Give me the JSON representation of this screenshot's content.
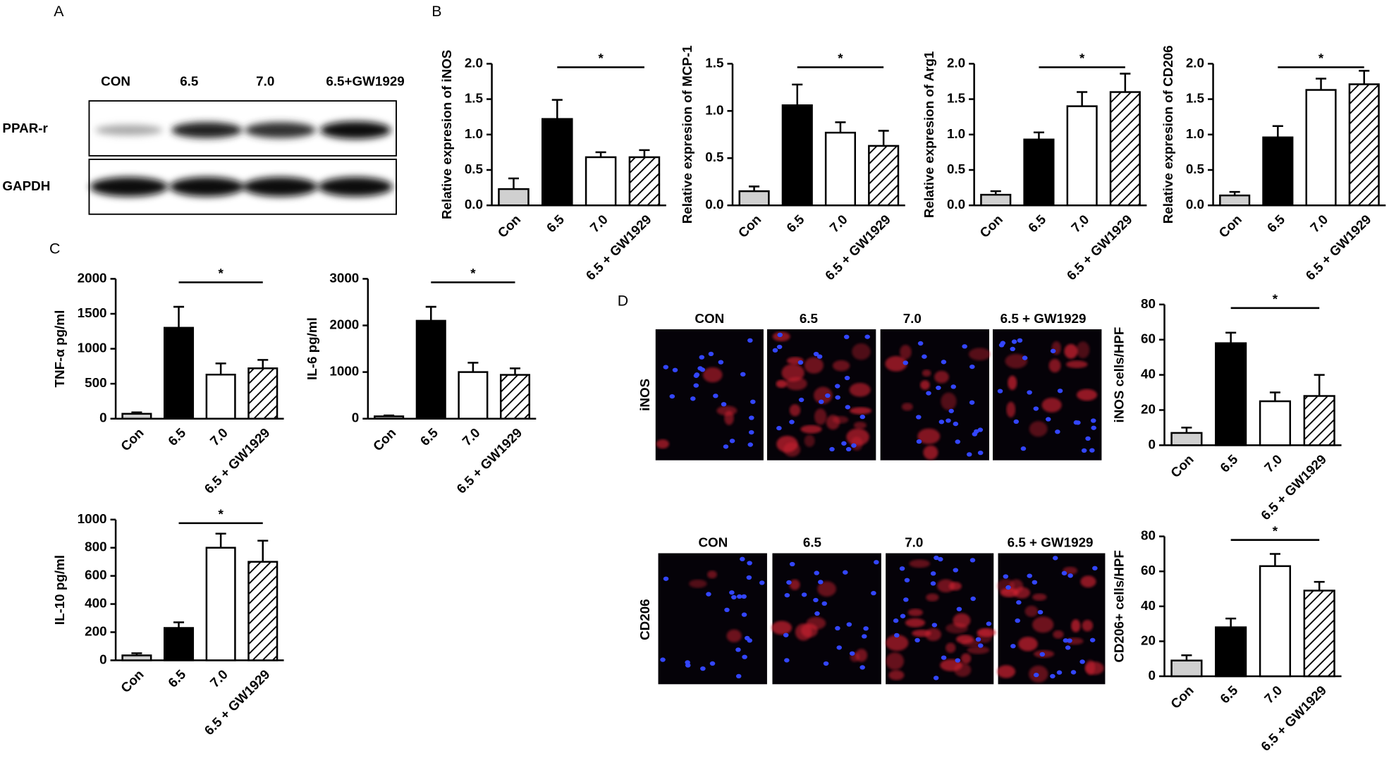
{
  "panel_labels": [
    "A",
    "B",
    "C",
    "D"
  ],
  "western_blot": {
    "lanes": [
      "CON",
      "6.5",
      "7.0",
      "6.5+GW1929"
    ],
    "rows": [
      "PPAR-r",
      "GAPDH"
    ]
  },
  "immunofluorescence": {
    "rows": [
      {
        "marker": "iNOS",
        "lanes": [
          "CON",
          "6.5",
          "7.0",
          "6.5 + GW1929"
        ]
      },
      {
        "marker": "CD206",
        "lanes": [
          "CON",
          "6.5",
          "7.0",
          "6.5 + GW1929"
        ]
      }
    ]
  },
  "chart_data": [
    {
      "type": "bar",
      "ylabel": "Relative expresion of iNOS",
      "categories": [
        "Con",
        "6.5",
        "7.0",
        "6.5 + GW1929"
      ],
      "values": [
        0.23,
        1.22,
        0.68,
        0.68
      ],
      "errors": [
        0.15,
        0.27,
        0.07,
        0.1
      ],
      "colors": [
        "#d0d0d0",
        "#000000",
        "#ffffff",
        "#ffffff"
      ],
      "hatch": [
        false,
        false,
        false,
        true
      ],
      "ylim": [
        0,
        2
      ],
      "yticks": [
        {
          "value": 0,
          "label": "0.0"
        },
        0.5,
        {
          "value": 1,
          "label": "1.0"
        },
        1.5,
        {
          "value": 2,
          "label": "2.0"
        }
      ],
      "significance": {
        "text": "*",
        "from": 1,
        "to": 3
      }
    },
    {
      "type": "bar",
      "ylabel": "Relative expresion of MCP-1",
      "categories": [
        "Con",
        "6.5",
        "7.0",
        "6.5 + GW1929"
      ],
      "values": [
        0.15,
        1.06,
        0.77,
        0.63
      ],
      "errors": [
        0.05,
        0.22,
        0.11,
        0.16
      ],
      "colors": [
        "#d0d0d0",
        "#000000",
        "#ffffff",
        "#ffffff"
      ],
      "hatch": [
        false,
        false,
        false,
        true
      ],
      "ylim": [
        0,
        1.5
      ],
      "yticks": [
        {
          "value": 0,
          "label": "0.0"
        },
        0.5,
        {
          "value": 1,
          "label": "1.0"
        },
        1.5
      ],
      "significance": {
        "text": "*",
        "from": 1,
        "to": 3
      }
    },
    {
      "type": "bar",
      "ylabel": "Relative expresion of Arg1",
      "categories": [
        "Con",
        "6.5",
        "7.0",
        "6.5 + GW1929"
      ],
      "values": [
        0.15,
        0.93,
        1.4,
        1.6
      ],
      "errors": [
        0.05,
        0.1,
        0.2,
        0.26
      ],
      "colors": [
        "#d0d0d0",
        "#000000",
        "#ffffff",
        "#ffffff"
      ],
      "hatch": [
        false,
        false,
        false,
        true
      ],
      "ylim": [
        0,
        2
      ],
      "yticks": [
        {
          "value": 0,
          "label": "0.0"
        },
        0.5,
        {
          "value": 1,
          "label": "1.0"
        },
        1.5,
        {
          "value": 2,
          "label": "2.0"
        }
      ],
      "significance": {
        "text": "*",
        "from": 1,
        "to": 3
      }
    },
    {
      "type": "bar",
      "ylabel": "Relative expresion of CD206",
      "categories": [
        "Con",
        "6.5",
        "7.0",
        "6.5 + GW1929"
      ],
      "values": [
        0.14,
        0.96,
        1.63,
        1.71
      ],
      "errors": [
        0.05,
        0.16,
        0.16,
        0.19
      ],
      "colors": [
        "#d0d0d0",
        "#000000",
        "#ffffff",
        "#ffffff"
      ],
      "hatch": [
        false,
        false,
        false,
        true
      ],
      "ylim": [
        0,
        2
      ],
      "yticks": [
        {
          "value": 0,
          "label": "0.0"
        },
        0.5,
        {
          "value": 1,
          "label": "1.0"
        },
        1.5,
        {
          "value": 2,
          "label": "2.0"
        }
      ],
      "significance": {
        "text": "*",
        "from": 1,
        "to": 3
      }
    },
    {
      "type": "bar",
      "ylabel": "TNF-α pg/ml",
      "categories": [
        "Con",
        "6.5",
        "7.0",
        "6.5 + GW1929"
      ],
      "values": [
        70,
        1300,
        630,
        720
      ],
      "errors": [
        20,
        300,
        160,
        120
      ],
      "colors": [
        "#d0d0d0",
        "#000000",
        "#ffffff",
        "#ffffff"
      ],
      "hatch": [
        false,
        false,
        false,
        true
      ],
      "ylim": [
        0,
        2000
      ],
      "yticks": [
        0,
        500,
        1000,
        1500,
        2000
      ],
      "significance": {
        "text": "*",
        "from": 1,
        "to": 3
      }
    },
    {
      "type": "bar",
      "ylabel": "IL-6 pg/ml",
      "categories": [
        "Con",
        "6.5",
        "7.0",
        "6.5 + GW1929"
      ],
      "values": [
        50,
        2100,
        1000,
        940
      ],
      "errors": [
        20,
        300,
        200,
        140
      ],
      "colors": [
        "#d0d0d0",
        "#000000",
        "#ffffff",
        "#ffffff"
      ],
      "hatch": [
        false,
        false,
        false,
        true
      ],
      "ylim": [
        0,
        3000
      ],
      "yticks": [
        0,
        1000,
        2000,
        3000
      ],
      "significance": {
        "text": "*",
        "from": 1,
        "to": 3
      }
    },
    {
      "type": "bar",
      "ylabel": "IL-10 pg/ml",
      "categories": [
        "Con",
        "6.5",
        "7.0",
        "6.5 + GW1929"
      ],
      "values": [
        35,
        230,
        800,
        700
      ],
      "errors": [
        15,
        40,
        100,
        150
      ],
      "colors": [
        "#d0d0d0",
        "#000000",
        "#ffffff",
        "#ffffff"
      ],
      "hatch": [
        false,
        false,
        false,
        true
      ],
      "ylim": [
        0,
        1000
      ],
      "yticks": [
        0,
        200,
        400,
        600,
        800,
        1000
      ],
      "significance": {
        "text": "*",
        "from": 1,
        "to": 3
      }
    },
    {
      "type": "bar",
      "ylabel": "iNOS cells/HPF",
      "categories": [
        "Con",
        "6.5",
        "7.0",
        "6.5 + GW1929"
      ],
      "values": [
        7,
        58,
        25,
        28
      ],
      "errors": [
        3,
        6,
        5,
        12
      ],
      "colors": [
        "#d0d0d0",
        "#000000",
        "#ffffff",
        "#ffffff"
      ],
      "hatch": [
        false,
        false,
        false,
        true
      ],
      "ylim": [
        0,
        80
      ],
      "yticks": [
        0,
        20,
        40,
        60,
        80
      ],
      "significance": {
        "text": "*",
        "from": 1,
        "to": 3
      }
    },
    {
      "type": "bar",
      "ylabel": "CD206+ cells/HPF",
      "categories": [
        "Con",
        "6.5",
        "7.0",
        "6.5 + GW1929"
      ],
      "values": [
        9,
        28,
        63,
        49
      ],
      "errors": [
        3,
        5,
        7,
        5
      ],
      "colors": [
        "#d0d0d0",
        "#000000",
        "#ffffff",
        "#ffffff"
      ],
      "hatch": [
        false,
        false,
        false,
        true
      ],
      "ylim": [
        0,
        80
      ],
      "yticks": [
        0,
        20,
        40,
        60,
        80
      ],
      "significance": {
        "text": "*",
        "from": 1,
        "to": 3
      }
    }
  ]
}
